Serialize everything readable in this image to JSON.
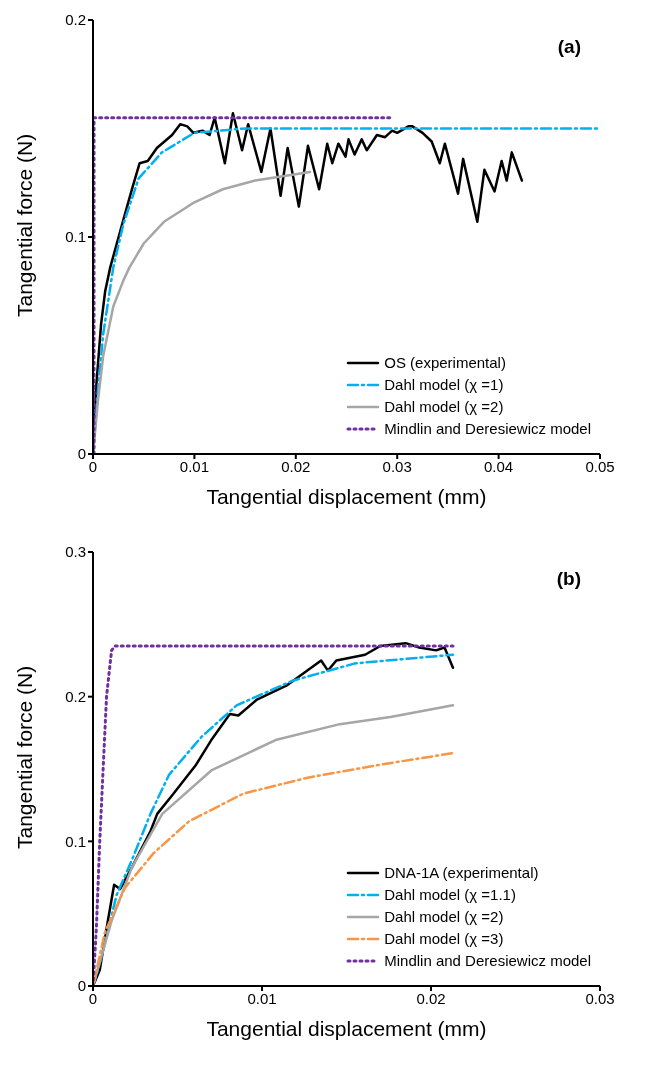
{
  "chart_data": [
    {
      "type": "line",
      "xlabel": "Tangential displacement (mm)",
      "ylabel": "Tangential force (N)",
      "annotations": [
        "(a)"
      ],
      "xlim": [
        0,
        0.05
      ],
      "xticks": [
        0,
        0.01,
        0.02,
        0.03,
        0.04,
        0.05
      ],
      "ylim": [
        0,
        0.2
      ],
      "yticks": [
        0,
        0.1,
        0.2
      ],
      "grid": false,
      "legend": "bottom right",
      "marker": "none",
      "series": [
        {
          "name": "OS (experimental)",
          "color": "#000000",
          "line_style": "solid",
          "x": [
            0,
            0.0003,
            0.0008,
            0.0012,
            0.0017,
            0.003,
            0.0039,
            0.0046,
            0.0054,
            0.0063,
            0.0078,
            0.0086,
            0.0093,
            0.0099,
            0.0108,
            0.0115,
            0.012,
            0.013,
            0.0138,
            0.0147,
            0.0153,
            0.0166,
            0.0175,
            0.0185,
            0.0192,
            0.0203,
            0.0212,
            0.0223,
            0.0231,
            0.0236,
            0.0242,
            0.0249,
            0.0252,
            0.0258,
            0.0265,
            0.027,
            0.028,
            0.0288,
            0.0295,
            0.03,
            0.0311,
            0.0315,
            0.0325,
            0.0334,
            0.0342,
            0.0347,
            0.036,
            0.0365,
            0.0379,
            0.0386,
            0.0396,
            0.0403,
            0.0408,
            0.0413,
            0.0423
          ],
          "values": [
            0,
            0.03,
            0.06,
            0.075,
            0.086,
            0.108,
            0.123,
            0.134,
            0.135,
            0.141,
            0.147,
            0.152,
            0.151,
            0.148,
            0.149,
            0.147,
            0.155,
            0.134,
            0.157,
            0.14,
            0.152,
            0.13,
            0.15,
            0.119,
            0.141,
            0.114,
            0.142,
            0.122,
            0.143,
            0.134,
            0.143,
            0.137,
            0.145,
            0.138,
            0.145,
            0.14,
            0.147,
            0.146,
            0.149,
            0.148,
            0.151,
            0.151,
            0.148,
            0.144,
            0.134,
            0.143,
            0.12,
            0.136,
            0.107,
            0.131,
            0.121,
            0.135,
            0.126,
            0.139,
            0.126
          ]
        },
        {
          "name": "Dahl model (χ =1)",
          "color": "#00b0f0",
          "line_style": "dashed",
          "x": [
            0,
            0.0005,
            0.001,
            0.002,
            0.003,
            0.0045,
            0.0068,
            0.01,
            0.015,
            0.02,
            0.05
          ],
          "values": [
            0,
            0.03,
            0.055,
            0.086,
            0.106,
            0.127,
            0.139,
            0.148,
            0.15,
            0.15,
            0.15
          ]
        },
        {
          "name": "Dahl model (χ =2)",
          "color": "#a6a6a6",
          "line_style": "solid",
          "x": [
            0,
            0.0005,
            0.001,
            0.002,
            0.003,
            0.0036,
            0.005,
            0.007,
            0.01,
            0.0128,
            0.016,
            0.0214
          ],
          "values": [
            0,
            0.025,
            0.045,
            0.068,
            0.08,
            0.086,
            0.097,
            0.107,
            0.116,
            0.122,
            0.126,
            0.13
          ]
        },
        {
          "name": "Mindlin and Deresiewicz model",
          "color": "#7030a0",
          "line_style": "dotted",
          "x": [
            0.0001,
            0.0001,
            0.0001,
            0.0001,
            0.005,
            0.01,
            0.015,
            0.02,
            0.025,
            0.0295
          ],
          "values": [
            0,
            0.05,
            0.1,
            0.155,
            0.155,
            0.155,
            0.155,
            0.155,
            0.155,
            0.155
          ]
        }
      ]
    },
    {
      "type": "line",
      "xlabel": "Tangential displacement (mm)",
      "ylabel": "Tangential force (N)",
      "annotations": [
        "(b)"
      ],
      "xlim": [
        0,
        0.03
      ],
      "xticks": [
        0,
        0.01,
        0.02,
        0.03
      ],
      "ylim": [
        0,
        0.3
      ],
      "yticks": [
        0,
        0.1,
        0.2,
        0.3
      ],
      "grid": false,
      "legend": "bottom right",
      "marker": "none",
      "series": [
        {
          "name": "DNA-1A (experimental)",
          "color": "#000000",
          "line_style": "solid",
          "x": [
            0,
            0.0004,
            0.00085,
            0.00125,
            0.0016,
            0.0023,
            0.0034,
            0.0038,
            0.0047,
            0.0061,
            0.007,
            0.0081,
            0.0086,
            0.0097,
            0.0115,
            0.0135,
            0.0139,
            0.0144,
            0.0161,
            0.017,
            0.0185,
            0.0193,
            0.0203,
            0.0208,
            0.0213
          ],
          "values": [
            0,
            0.011,
            0.043,
            0.07,
            0.067,
            0.082,
            0.107,
            0.119,
            0.132,
            0.153,
            0.17,
            0.188,
            0.187,
            0.198,
            0.208,
            0.225,
            0.218,
            0.225,
            0.229,
            0.235,
            0.237,
            0.234,
            0.232,
            0.234,
            0.22
          ]
        },
        {
          "name": "Dahl model (χ =1.1)",
          "color": "#00b0f0",
          "line_style": "dashed",
          "x": [
            0,
            0.0005,
            0.0014,
            0.0023,
            0.0034,
            0.0045,
            0.0064,
            0.0085,
            0.0118,
            0.0155,
            0.0213
          ],
          "values": [
            0,
            0.02,
            0.063,
            0.087,
            0.119,
            0.146,
            0.172,
            0.194,
            0.211,
            0.223,
            0.229
          ]
        },
        {
          "name": "Dahl model (χ =2)",
          "color": "#a6a6a6",
          "line_style": "solid",
          "x": [
            0,
            0.0011,
            0.0023,
            0.0041,
            0.007,
            0.0108,
            0.0146,
            0.0176,
            0.0213
          ],
          "values": [
            0,
            0.045,
            0.082,
            0.119,
            0.149,
            0.17,
            0.181,
            0.186,
            0.194
          ]
        },
        {
          "name": "Dahl model (χ =3)",
          "color": "#f79646",
          "line_style": "dashed",
          "x": [
            0,
            0.0007,
            0.0019,
            0.0036,
            0.0057,
            0.0089,
            0.0127,
            0.017,
            0.0213
          ],
          "values": [
            0,
            0.037,
            0.068,
            0.092,
            0.114,
            0.133,
            0.144,
            0.153,
            0.161
          ]
        },
        {
          "name": "Mindlin and Deresiewicz model",
          "color": "#7030a0",
          "line_style": "dotted",
          "x": [
            0,
            0.0002,
            0.0004,
            0.0006,
            0.0008,
            0.0011,
            0.0013,
            0.0213
          ],
          "values": [
            0,
            0.04,
            0.1,
            0.15,
            0.2,
            0.232,
            0.235,
            0.235
          ]
        }
      ]
    }
  ]
}
